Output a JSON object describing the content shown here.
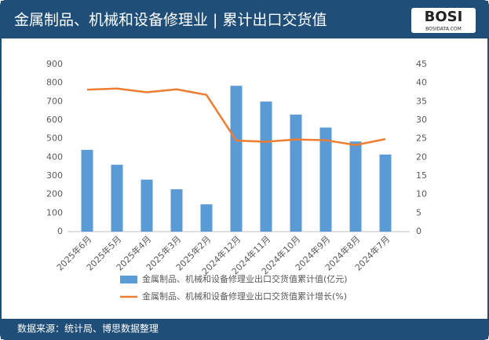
{
  "logo": {
    "text": "BOSI",
    "url": "BOSIDATA.COM"
  },
  "chart_data": {
    "type": "bar-line",
    "title": "金属制品、机械和设备修理业 | 累计出口交货值",
    "source": "数据来源：统计局、博思数据整理",
    "categories": [
      "2025年6月",
      "2025年5月",
      "2025年4月",
      "2025年3月",
      "2025年2月",
      "2024年12月",
      "2024年11月",
      "2024年10月",
      "2024年9月",
      "2024年8月",
      "2024年7月"
    ],
    "series": [
      {
        "name": "金属制品、机械和设备修理业出口交货值累计值(亿元)",
        "color": "#5b9bd5",
        "type": "bar",
        "values": [
          440,
          360,
          280,
          228,
          147,
          785,
          700,
          630,
          560,
          485,
          415
        ]
      },
      {
        "name": "金属制品、机械和设备修理业出口交货值累计增长(%)",
        "color": "#ed7d31",
        "type": "line",
        "axis": "y2",
        "values": [
          38.2,
          38.5,
          37.5,
          38.3,
          36.8,
          24.5,
          24.2,
          24.8,
          24.6,
          23.3,
          24.9
        ]
      }
    ],
    "ylim": [
      0,
      900
    ],
    "yticks": [
      0,
      100,
      200,
      300,
      400,
      500,
      600,
      700,
      800,
      900
    ],
    "y2lim": [
      0,
      45
    ],
    "y2ticks": [
      0,
      5,
      10,
      15,
      20,
      25,
      30,
      35,
      40,
      45
    ]
  }
}
